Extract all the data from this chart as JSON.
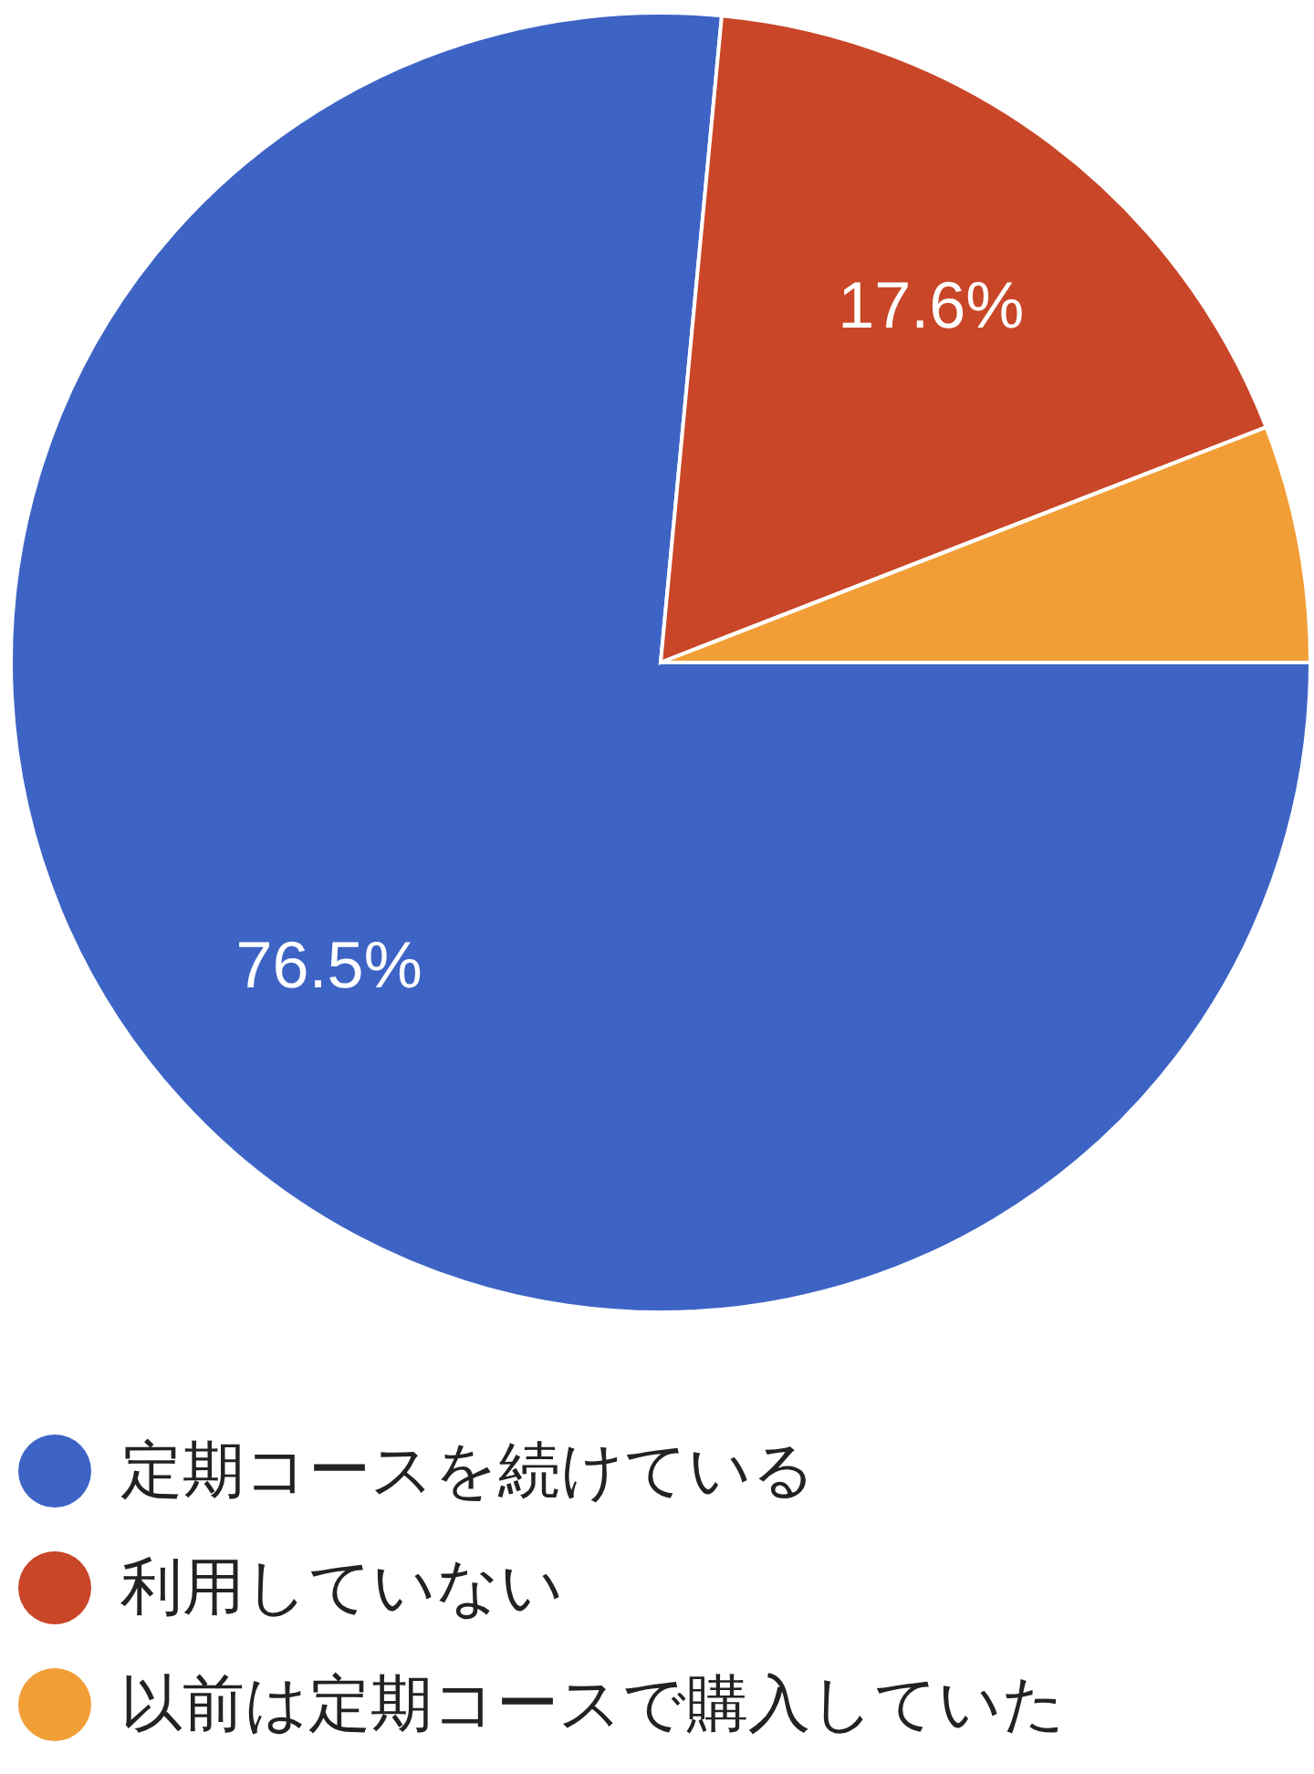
{
  "chart_data": {
    "type": "pie",
    "categories": [
      "定期コースを続けている",
      "利用していない",
      "以前は定期コースで購入していた"
    ],
    "values": [
      76.5,
      17.6,
      5.9
    ],
    "colors": [
      "#3d64c5",
      "#c94628",
      "#f19e37"
    ],
    "value_labels": [
      "76.5%",
      "17.6%",
      null
    ],
    "legend": "bottom"
  }
}
